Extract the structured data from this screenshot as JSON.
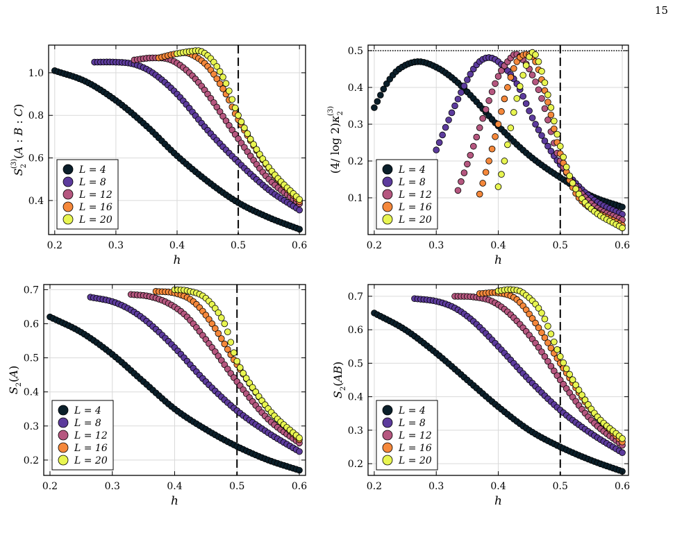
{
  "page_number": "15",
  "colors": {
    "L4": "#0b1f2a",
    "L8": "#5c3b9c",
    "L12": "#b5577f",
    "L16": "#f5883b",
    "L20": "#e8f551"
  },
  "chart_data": [
    {
      "type": "scatter",
      "title": "",
      "xlabel": "h",
      "ylabel": "S_2^{(3)}(A : B : C)",
      "xlim": [
        0.19,
        0.61
      ],
      "ylim": [
        0.24,
        1.13
      ],
      "xticks": [
        0.2,
        0.3,
        0.4,
        0.5,
        0.6
      ],
      "yticks": [
        0.4,
        0.6,
        0.8,
        1.0
      ],
      "ytick_labels": [
        "0.4",
        "0.6",
        "0.8",
        "1.0"
      ],
      "vline": 0.5,
      "legend_position": "bottom-left",
      "series": [
        {
          "name": "L = 4",
          "color": "#0b1f2a",
          "points": [
            [
              0.2,
              1.01
            ],
            [
              0.25,
              0.96
            ],
            [
              0.3,
              0.87
            ],
            [
              0.35,
              0.75
            ],
            [
              0.4,
              0.61
            ],
            [
              0.45,
              0.49
            ],
            [
              0.5,
              0.39
            ],
            [
              0.55,
              0.32
            ],
            [
              0.6,
              0.265
            ]
          ]
        },
        {
          "name": "L = 8",
          "color": "#5c3b9c",
          "points": [
            [
              0.265,
              1.05
            ],
            [
              0.3,
              1.05
            ],
            [
              0.33,
              1.04
            ],
            [
              0.36,
              1.0
            ],
            [
              0.4,
              0.9
            ],
            [
              0.45,
              0.73
            ],
            [
              0.5,
              0.58
            ],
            [
              0.55,
              0.45
            ],
            [
              0.6,
              0.355
            ]
          ]
        },
        {
          "name": "L = 12",
          "color": "#b5577f",
          "points": [
            [
              0.33,
              1.06
            ],
            [
              0.36,
              1.07
            ],
            [
              0.39,
              1.06
            ],
            [
              0.42,
              1.0
            ],
            [
              0.45,
              0.9
            ],
            [
              0.5,
              0.69
            ],
            [
              0.55,
              0.5
            ],
            [
              0.6,
              0.385
            ]
          ]
        },
        {
          "name": "L = 16",
          "color": "#f5883b",
          "points": [
            [
              0.37,
              1.07
            ],
            [
              0.4,
              1.09
            ],
            [
              0.42,
              1.09
            ],
            [
              0.45,
              1.03
            ],
            [
              0.48,
              0.9
            ],
            [
              0.5,
              0.78
            ],
            [
              0.55,
              0.55
            ],
            [
              0.6,
              0.395
            ]
          ]
        },
        {
          "name": "L = 20",
          "color": "#e8f551",
          "points": [
            [
              0.4,
              1.09
            ],
            [
              0.42,
              1.1
            ],
            [
              0.44,
              1.1
            ],
            [
              0.46,
              1.05
            ],
            [
              0.48,
              0.95
            ],
            [
              0.5,
              0.8
            ],
            [
              0.53,
              0.64
            ],
            [
              0.56,
              0.52
            ],
            [
              0.6,
              0.405
            ]
          ]
        }
      ]
    },
    {
      "type": "scatter",
      "title": "",
      "xlabel": "h",
      "ylabel": "(4/log 2) κ_2^{(3)}",
      "xlim": [
        0.19,
        0.61
      ],
      "ylim": [
        0.0,
        0.515
      ],
      "xticks": [
        0.2,
        0.3,
        0.4,
        0.5,
        0.6
      ],
      "yticks": [
        0.1,
        0.2,
        0.3,
        0.4,
        0.5
      ],
      "ytick_labels": [
        "0.1",
        "0.2",
        "0.3",
        "0.4",
        "0.5"
      ],
      "vline": 0.5,
      "hline": 0.5,
      "legend_position": "bottom-left",
      "series": [
        {
          "name": "L = 4",
          "color": "#0b1f2a",
          "points": [
            [
              0.2,
              0.345
            ],
            [
              0.22,
              0.41
            ],
            [
              0.24,
              0.45
            ],
            [
              0.27,
              0.47
            ],
            [
              0.3,
              0.455
            ],
            [
              0.33,
              0.42
            ],
            [
              0.36,
              0.37
            ],
            [
              0.4,
              0.295
            ],
            [
              0.45,
              0.215
            ],
            [
              0.5,
              0.155
            ],
            [
              0.55,
              0.105
            ],
            [
              0.6,
              0.075
            ]
          ]
        },
        {
          "name": "L = 8",
          "color": "#5c3b9c",
          "points": [
            [
              0.3,
              0.23
            ],
            [
              0.33,
              0.35
            ],
            [
              0.36,
              0.45
            ],
            [
              0.38,
              0.48
            ],
            [
              0.4,
              0.47
            ],
            [
              0.43,
              0.41
            ],
            [
              0.46,
              0.3
            ],
            [
              0.5,
              0.19
            ],
            [
              0.55,
              0.1
            ],
            [
              0.6,
              0.055
            ]
          ]
        },
        {
          "name": "L = 12",
          "color": "#b5577f",
          "points": [
            [
              0.335,
              0.12
            ],
            [
              0.36,
              0.24
            ],
            [
              0.38,
              0.34
            ],
            [
              0.4,
              0.43
            ],
            [
              0.42,
              0.48
            ],
            [
              0.43,
              0.49
            ],
            [
              0.45,
              0.45
            ],
            [
              0.47,
              0.37
            ],
            [
              0.5,
              0.2
            ],
            [
              0.55,
              0.085
            ],
            [
              0.6,
              0.04
            ]
          ]
        },
        {
          "name": "L = 16",
          "color": "#f5883b",
          "points": [
            [
              0.37,
              0.11
            ],
            [
              0.385,
              0.2
            ],
            [
              0.4,
              0.3
            ],
            [
              0.415,
              0.4
            ],
            [
              0.43,
              0.47
            ],
            [
              0.445,
              0.49
            ],
            [
              0.46,
              0.47
            ],
            [
              0.48,
              0.36
            ],
            [
              0.5,
              0.22
            ],
            [
              0.53,
              0.1
            ],
            [
              0.6,
              0.025
            ]
          ]
        },
        {
          "name": "L = 20",
          "color": "#e8f551",
          "points": [
            [
              0.4,
              0.13
            ],
            [
              0.41,
              0.2
            ],
            [
              0.42,
              0.29
            ],
            [
              0.43,
              0.37
            ],
            [
              0.445,
              0.46
            ],
            [
              0.455,
              0.495
            ],
            [
              0.465,
              0.47
            ],
            [
              0.48,
              0.38
            ],
            [
              0.5,
              0.24
            ],
            [
              0.52,
              0.14
            ],
            [
              0.55,
              0.07
            ],
            [
              0.6,
              0.018
            ]
          ]
        }
      ]
    },
    {
      "type": "scatter",
      "title": "",
      "xlabel": "h",
      "ylabel": "S_2(A)",
      "xlim": [
        0.19,
        0.61
      ],
      "ylim": [
        0.155,
        0.715
      ],
      "xticks": [
        0.2,
        0.3,
        0.4,
        0.5,
        0.6
      ],
      "yticks": [
        0.2,
        0.3,
        0.4,
        0.5,
        0.6,
        0.7
      ],
      "ytick_labels": [
        "0.2",
        "0.3",
        "0.4",
        "0.5",
        "0.6",
        "0.7"
      ],
      "vline": 0.5,
      "legend_position": "bottom-left",
      "series": [
        {
          "name": "L = 4",
          "color": "#0b1f2a",
          "points": [
            [
              0.2,
              0.62
            ],
            [
              0.25,
              0.575
            ],
            [
              0.3,
              0.51
            ],
            [
              0.35,
              0.43
            ],
            [
              0.4,
              0.35
            ],
            [
              0.45,
              0.29
            ],
            [
              0.5,
              0.24
            ],
            [
              0.55,
              0.2
            ],
            [
              0.6,
              0.17
            ]
          ]
        },
        {
          "name": "L = 8",
          "color": "#5c3b9c",
          "points": [
            [
              0.265,
              0.678
            ],
            [
              0.3,
              0.665
            ],
            [
              0.33,
              0.64
            ],
            [
              0.36,
              0.6
            ],
            [
              0.4,
              0.53
            ],
            [
              0.45,
              0.43
            ],
            [
              0.5,
              0.345
            ],
            [
              0.55,
              0.28
            ],
            [
              0.6,
              0.225
            ]
          ]
        },
        {
          "name": "L = 12",
          "color": "#b5577f",
          "points": [
            [
              0.33,
              0.686
            ],
            [
              0.36,
              0.68
            ],
            [
              0.39,
              0.66
            ],
            [
              0.42,
              0.62
            ],
            [
              0.46,
              0.53
            ],
            [
              0.5,
              0.43
            ],
            [
              0.55,
              0.32
            ],
            [
              0.6,
              0.25
            ]
          ]
        },
        {
          "name": "L = 16",
          "color": "#f5883b",
          "points": [
            [
              0.37,
              0.695
            ],
            [
              0.4,
              0.69
            ],
            [
              0.43,
              0.665
            ],
            [
              0.46,
              0.6
            ],
            [
              0.5,
              0.48
            ],
            [
              0.55,
              0.35
            ],
            [
              0.6,
              0.26
            ]
          ]
        },
        {
          "name": "L = 20",
          "color": "#e8f551",
          "points": [
            [
              0.4,
              0.7
            ],
            [
              0.42,
              0.697
            ],
            [
              0.45,
              0.675
            ],
            [
              0.48,
              0.6
            ],
            [
              0.5,
              0.49
            ],
            [
              0.53,
              0.4
            ],
            [
              0.56,
              0.33
            ],
            [
              0.6,
              0.265
            ]
          ]
        }
      ]
    },
    {
      "type": "scatter",
      "title": "",
      "xlabel": "h",
      "ylabel": "S_2(AB)",
      "xlim": [
        0.19,
        0.61
      ],
      "ylim": [
        0.165,
        0.735
      ],
      "xticks": [
        0.2,
        0.3,
        0.4,
        0.5,
        0.6
      ],
      "yticks": [
        0.2,
        0.3,
        0.4,
        0.5,
        0.6,
        0.7
      ],
      "ytick_labels": [
        "0.2",
        "0.3",
        "0.4",
        "0.5",
        "0.6",
        "0.7"
      ],
      "vline": 0.5,
      "legend_position": "bottom-left",
      "series": [
        {
          "name": "L = 4",
          "color": "#0b1f2a",
          "points": [
            [
              0.2,
              0.65
            ],
            [
              0.25,
              0.6
            ],
            [
              0.3,
              0.53
            ],
            [
              0.35,
              0.45
            ],
            [
              0.4,
              0.37
            ],
            [
              0.45,
              0.3
            ],
            [
              0.5,
              0.25
            ],
            [
              0.55,
              0.21
            ],
            [
              0.6,
              0.177
            ]
          ]
        },
        {
          "name": "L = 8",
          "color": "#5c3b9c",
          "points": [
            [
              0.265,
              0.693
            ],
            [
              0.3,
              0.685
            ],
            [
              0.33,
              0.665
            ],
            [
              0.36,
              0.625
            ],
            [
              0.4,
              0.55
            ],
            [
              0.45,
              0.45
            ],
            [
              0.5,
              0.36
            ],
            [
              0.55,
              0.29
            ],
            [
              0.6,
              0.233
            ]
          ]
        },
        {
          "name": "L = 12",
          "color": "#b5577f",
          "points": [
            [
              0.33,
              0.7
            ],
            [
              0.36,
              0.698
            ],
            [
              0.39,
              0.685
            ],
            [
              0.42,
              0.645
            ],
            [
              0.46,
              0.56
            ],
            [
              0.5,
              0.45
            ],
            [
              0.55,
              0.33
            ],
            [
              0.6,
              0.255
            ]
          ]
        },
        {
          "name": "L = 16",
          "color": "#f5883b",
          "points": [
            [
              0.37,
              0.708
            ],
            [
              0.4,
              0.71
            ],
            [
              0.43,
              0.69
            ],
            [
              0.46,
              0.62
            ],
            [
              0.5,
              0.5
            ],
            [
              0.55,
              0.36
            ],
            [
              0.6,
              0.265
            ]
          ]
        },
        {
          "name": "L = 20",
          "color": "#e8f551",
          "points": [
            [
              0.4,
              0.716
            ],
            [
              0.42,
              0.72
            ],
            [
              0.44,
              0.71
            ],
            [
              0.47,
              0.65
            ],
            [
              0.5,
              0.52
            ],
            [
              0.53,
              0.42
            ],
            [
              0.56,
              0.34
            ],
            [
              0.6,
              0.275
            ]
          ]
        }
      ]
    }
  ]
}
